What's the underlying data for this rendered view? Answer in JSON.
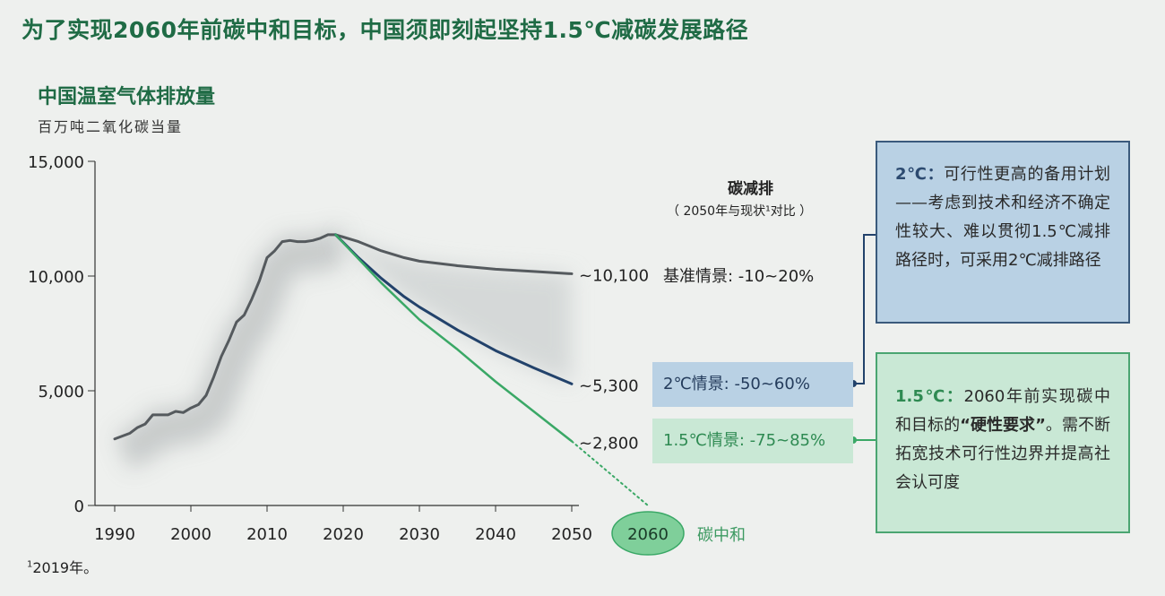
{
  "headline": "为了实现2060年前碳中和目标，中国须即刻起坚持1.5℃减碳发展路径",
  "chart_title": "中国温室气体排放量",
  "chart_unit": "百万吨二氧化碳当量",
  "reduction_title": "碳减排",
  "reduction_subtitle": "（ 2050年与现状¹对比 ）",
  "scenarios": {
    "baseline": "基准情景: -10~20%",
    "two_c": "2℃情景: -50~60%",
    "one_five_c": "1.5℃情景: -75~85%"
  },
  "notes": {
    "two_c_lead": "2℃：",
    "two_c_text": "可行性更高的备用计划——考虑到技术和经济不确定性较大、难以贯彻1.5℃减排路径时，可采用2℃减排路径",
    "one_five_lead": "1.5℃：",
    "one_five_text_a": "2060年前实现碳中和目标的",
    "one_five_text_strong": "“硬性要求”",
    "one_five_text_b": "。需不断拓宽技术可行性边界并提高社会认可度"
  },
  "footnote_mark": "1",
  "footnote_text": "2019年。",
  "neutral_year": "2060",
  "neutral_label": "碳中和",
  "colors": {
    "historical": "#555a5e",
    "baseline": "#555a5e",
    "two_c": "#22426b",
    "one_five_c": "#3aa866",
    "title_green": "#1f6b45"
  },
  "chart_data": {
    "type": "line",
    "x_ticks": [
      "1990",
      "2000",
      "2010",
      "2020",
      "2030",
      "2040",
      "2050"
    ],
    "y_ticks": [
      "0",
      "5,000",
      "10,000",
      "15,000"
    ],
    "xlim": [
      1990,
      2060
    ],
    "ylim": [
      0,
      15000
    ],
    "series": [
      {
        "id": "historical",
        "x": [
          1990,
          1992,
          1993,
          1994,
          1995,
          1996,
          1997,
          1998,
          1999,
          2000,
          2001,
          2002,
          2003,
          2004,
          2005,
          2006,
          2007,
          2008,
          2009,
          2010,
          2011,
          2012,
          2013,
          2014,
          2015,
          2016,
          2017,
          2018,
          2019
        ],
        "y": [
          2900,
          3150,
          3400,
          3550,
          3950,
          3950,
          3950,
          4100,
          4050,
          4250,
          4400,
          4800,
          5600,
          6500,
          7200,
          8000,
          8300,
          9000,
          9800,
          10800,
          11100,
          11500,
          11550,
          11500,
          11500,
          11550,
          11650,
          11800,
          11800
        ]
      },
      {
        "id": "baseline",
        "x": [
          2019,
          2022,
          2025,
          2028,
          2030,
          2035,
          2040,
          2045,
          2050
        ],
        "y": [
          11800,
          11500,
          11100,
          10800,
          10650,
          10450,
          10300,
          10200,
          10100
        ],
        "end_label": "~10,100"
      },
      {
        "id": "two_c",
        "x": [
          2019,
          2022,
          2025,
          2028,
          2030,
          2035,
          2040,
          2045,
          2050
        ],
        "y": [
          11800,
          10800,
          9900,
          9100,
          8650,
          7650,
          6750,
          6000,
          5300
        ],
        "end_label": "~5,300"
      },
      {
        "id": "one_five_c",
        "x": [
          2019,
          2025,
          2030,
          2035,
          2040,
          2045,
          2050
        ],
        "y": [
          11800,
          9700,
          8100,
          6800,
          5400,
          4100,
          2800
        ],
        "end_label": "~2,800"
      },
      {
        "id": "one_five_c_extension",
        "x": [
          2050,
          2060
        ],
        "y": [
          2800,
          0
        ]
      }
    ]
  }
}
